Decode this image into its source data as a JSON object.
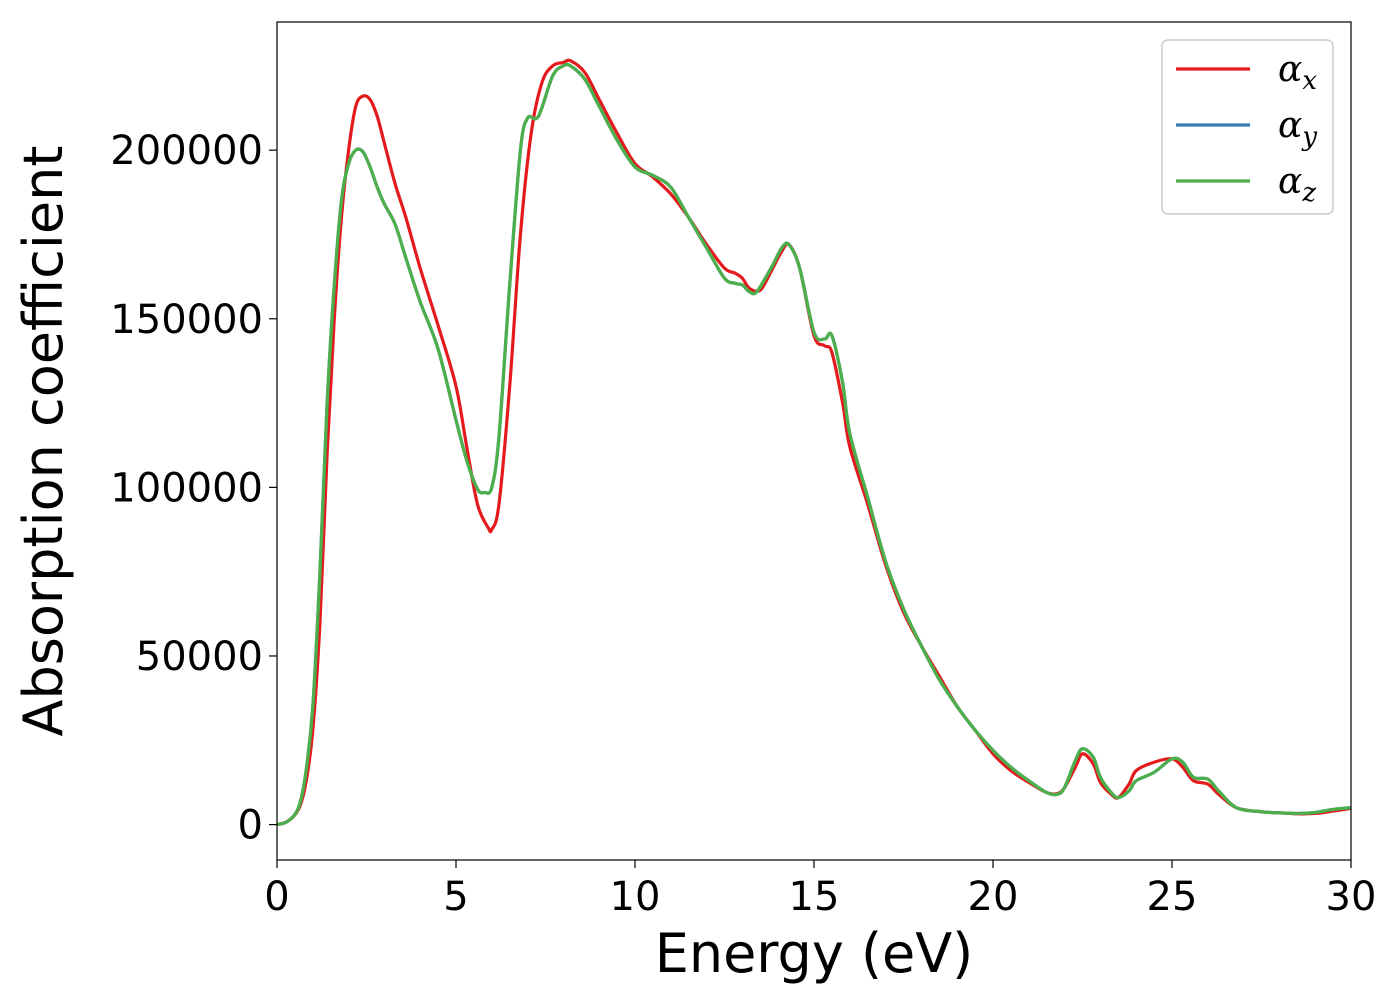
{
  "chart_data": {
    "type": "line",
    "title": "",
    "xlabel": "Energy (eV)",
    "ylabel": "Absorption coefficient",
    "xlim": [
      0,
      30
    ],
    "ylim": [
      -10500,
      238000
    ],
    "xticks": [
      0,
      5,
      10,
      15,
      20,
      25,
      30
    ],
    "yticks": [
      0,
      50000,
      100000,
      150000,
      200000
    ],
    "grid": false,
    "legend_position": "top-right",
    "series": [
      {
        "name": "α_x",
        "label_main": "α",
        "label_sub": "x",
        "color": "#e41a1c",
        "x": [
          0,
          0.3,
          0.6,
          0.8,
          1.0,
          1.2,
          1.4,
          1.6,
          1.8,
          2.0,
          2.2,
          2.4,
          2.6,
          2.8,
          3.0,
          3.3,
          3.6,
          4.0,
          4.5,
          5.0,
          5.3,
          5.6,
          5.9,
          6.0,
          6.2,
          6.5,
          6.8,
          7.1,
          7.4,
          7.7,
          8.0,
          8.2,
          8.6,
          9.0,
          9.5,
          10.0,
          10.5,
          11.0,
          11.5,
          12.0,
          12.5,
          12.8,
          13.0,
          13.2,
          13.5,
          13.8,
          14.1,
          14.3,
          14.6,
          15.0,
          15.3,
          15.5,
          15.8,
          16.0,
          16.5,
          17.0,
          17.5,
          18.0,
          18.5,
          19.0,
          19.5,
          20.0,
          20.5,
          21.0,
          21.5,
          21.8,
          22.0,
          22.3,
          22.5,
          22.8,
          23.0,
          23.3,
          23.5,
          23.8,
          24.0,
          24.5,
          25.0,
          25.3,
          25.6,
          26.0,
          26.3,
          26.8,
          27.5,
          28.0,
          28.5,
          29.0,
          29.5,
          30.0
        ],
        "y": [
          0,
          1000,
          4500,
          12000,
          28000,
          60000,
          110000,
          150000,
          180000,
          200000,
          213000,
          216000,
          215000,
          210000,
          202000,
          190000,
          180000,
          165000,
          148000,
          130000,
          112000,
          95000,
          88000,
          87500,
          95000,
          130000,
          175000,
          205000,
          220000,
          225000,
          226000,
          226500,
          223000,
          215000,
          205000,
          196000,
          192000,
          187000,
          180000,
          172000,
          165000,
          163500,
          162000,
          159000,
          158500,
          164000,
          170000,
          172000,
          165000,
          145000,
          142000,
          140000,
          125000,
          112000,
          95000,
          77000,
          63000,
          53000,
          44000,
          35000,
          28000,
          21000,
          16000,
          12500,
          9500,
          9200,
          11000,
          17000,
          21000,
          18000,
          12500,
          9000,
          8000,
          12000,
          16000,
          18500,
          19500,
          17000,
          13000,
          12000,
          9000,
          5000,
          3800,
          3500,
          3200,
          3300,
          4000,
          4800
        ]
      },
      {
        "name": "α_y",
        "label_main": "α",
        "label_sub": "y",
        "color": "#377eb8",
        "x": [
          0,
          0.3,
          0.6,
          0.8,
          1.0,
          1.2,
          1.4,
          1.6,
          1.8,
          2.0,
          2.2,
          2.4,
          2.6,
          2.8,
          3.0,
          3.3,
          3.6,
          4.0,
          4.5,
          5.0,
          5.3,
          5.6,
          5.8,
          6.0,
          6.2,
          6.5,
          6.8,
          7.0,
          7.3,
          7.7,
          8.0,
          8.2,
          8.6,
          9.0,
          9.5,
          10.0,
          10.5,
          11.0,
          11.5,
          12.0,
          12.5,
          12.8,
          13.0,
          13.2,
          13.4,
          13.8,
          14.1,
          14.3,
          14.6,
          15.0,
          15.3,
          15.5,
          15.8,
          16.0,
          16.5,
          17.0,
          17.5,
          18.0,
          18.5,
          19.0,
          19.5,
          20.0,
          20.5,
          21.0,
          21.5,
          21.8,
          22.0,
          22.3,
          22.5,
          22.8,
          23.0,
          23.3,
          23.5,
          23.8,
          24.0,
          24.5,
          25.0,
          25.3,
          25.6,
          26.0,
          26.3,
          26.8,
          27.5,
          28.0,
          28.5,
          29.0,
          29.5,
          30.0
        ],
        "y": [
          0,
          1000,
          5000,
          15000,
          35000,
          75000,
          125000,
          160000,
          185000,
          196000,
          200000,
          199500,
          195000,
          189000,
          184000,
          178000,
          168000,
          155000,
          141000,
          120000,
          108000,
          99500,
          98500,
          100000,
          115000,
          160000,
          200000,
          209500,
          210000,
          222000,
          225000,
          225000,
          221000,
          213000,
          203000,
          195000,
          192500,
          189000,
          180000,
          171000,
          162000,
          160500,
          160000,
          158000,
          158000,
          165000,
          171000,
          172000,
          165000,
          146000,
          144000,
          145000,
          131000,
          116000,
          97000,
          78000,
          64000,
          53000,
          43000,
          35000,
          28000,
          22000,
          17000,
          13000,
          9500,
          9000,
          11000,
          19000,
          22500,
          20000,
          14000,
          9500,
          8000,
          10000,
          13000,
          15500,
          19500,
          18500,
          14000,
          13500,
          10000,
          5000,
          3800,
          3500,
          3300,
          3600,
          4500,
          5000
        ]
      },
      {
        "name": "α_z",
        "label_main": "α",
        "label_sub": "z",
        "color": "#4daf4a",
        "x": [
          0,
          0.3,
          0.6,
          0.8,
          1.0,
          1.2,
          1.4,
          1.6,
          1.8,
          2.0,
          2.2,
          2.4,
          2.6,
          2.8,
          3.0,
          3.3,
          3.6,
          4.0,
          4.5,
          5.0,
          5.3,
          5.6,
          5.8,
          6.0,
          6.2,
          6.5,
          6.8,
          7.0,
          7.3,
          7.7,
          8.0,
          8.2,
          8.6,
          9.0,
          9.5,
          10.0,
          10.5,
          11.0,
          11.5,
          12.0,
          12.5,
          12.8,
          13.0,
          13.2,
          13.4,
          13.8,
          14.1,
          14.3,
          14.6,
          15.0,
          15.3,
          15.5,
          15.8,
          16.0,
          16.5,
          17.0,
          17.5,
          18.0,
          18.5,
          19.0,
          19.5,
          20.0,
          20.5,
          21.0,
          21.5,
          21.8,
          22.0,
          22.3,
          22.5,
          22.8,
          23.0,
          23.3,
          23.5,
          23.8,
          24.0,
          24.5,
          25.0,
          25.3,
          25.6,
          26.0,
          26.3,
          26.8,
          27.5,
          28.0,
          28.5,
          29.0,
          29.5,
          30.0
        ],
        "y": [
          0,
          1000,
          5000,
          15000,
          35000,
          75000,
          125000,
          160000,
          185000,
          196000,
          200000,
          199500,
          195000,
          189000,
          184000,
          178000,
          168000,
          155000,
          141000,
          120000,
          108000,
          99500,
          98500,
          100000,
          115000,
          160000,
          200000,
          209500,
          210000,
          222000,
          225000,
          225000,
          221000,
          213000,
          203000,
          195000,
          192500,
          189000,
          180000,
          171000,
          162000,
          160500,
          160000,
          158000,
          158000,
          165000,
          171000,
          172000,
          165000,
          146000,
          144000,
          145000,
          131000,
          116000,
          97000,
          78000,
          64000,
          53000,
          43000,
          35000,
          28000,
          22000,
          17000,
          13000,
          9500,
          9000,
          11000,
          19000,
          22500,
          20000,
          14000,
          9500,
          8000,
          10000,
          13000,
          15500,
          19500,
          18500,
          14000,
          13500,
          10000,
          5000,
          3800,
          3500,
          3300,
          3600,
          4500,
          5000
        ]
      }
    ]
  }
}
